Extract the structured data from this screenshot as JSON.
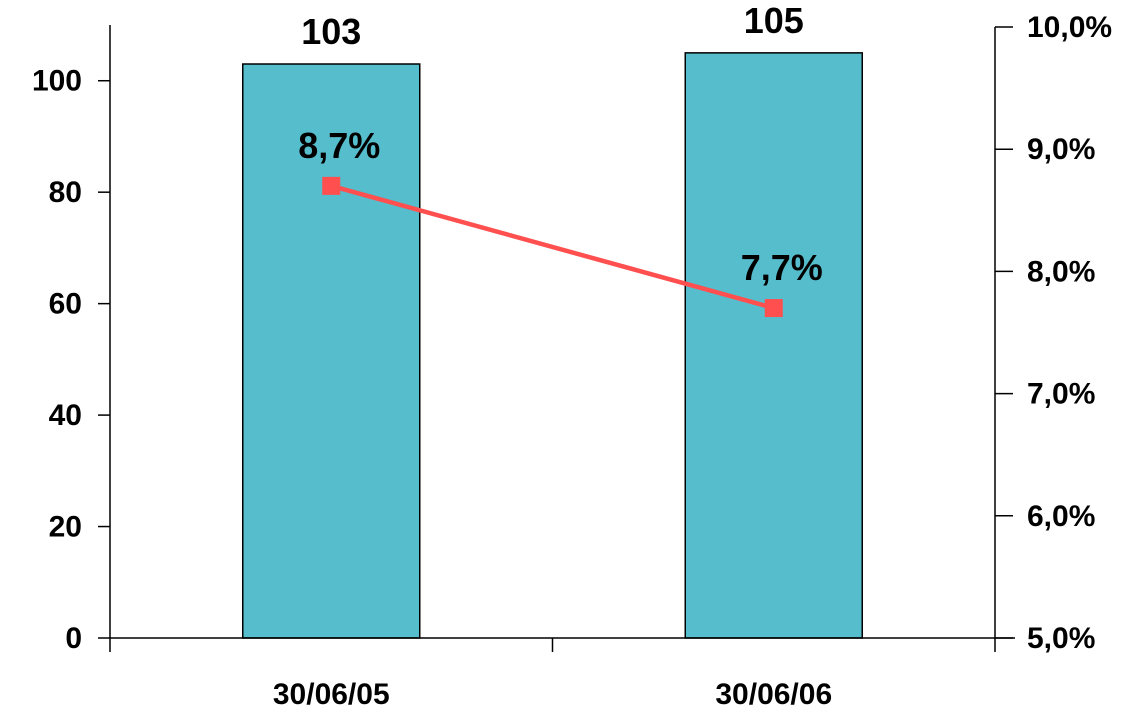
{
  "chart_data": {
    "type": "bar",
    "categories": [
      "30/06/05",
      "30/06/06"
    ],
    "series": [
      {
        "type": "bar",
        "axis": "left",
        "values": [
          103,
          105
        ],
        "data_labels": [
          "103",
          "105"
        ],
        "color": "#56BDCC"
      },
      {
        "type": "line",
        "axis": "right",
        "values": [
          8.7,
          7.7
        ],
        "data_labels": [
          "8,7%",
          "7,7%"
        ],
        "color": "#FF4F4F"
      }
    ],
    "y_left": {
      "min": 0,
      "max": 110,
      "ticks": [
        0,
        20,
        40,
        60,
        80,
        100
      ],
      "tick_labels": [
        "0",
        "20",
        "40",
        "60",
        "80",
        "100"
      ]
    },
    "y_right": {
      "min": 5.0,
      "max": 10.0,
      "ticks": [
        5,
        6,
        7,
        8,
        9,
        10
      ],
      "tick_labels": [
        "5,0%",
        "6,0%",
        "7,0%",
        "8,0%",
        "9,0%",
        "10,0%"
      ]
    },
    "grid": false,
    "legend": "none",
    "title": "",
    "xlabel": "",
    "ylabel": ""
  }
}
